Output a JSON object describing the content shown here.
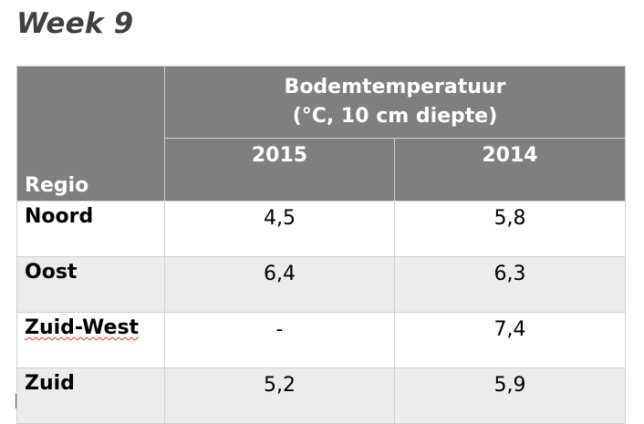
{
  "title": "Week 9",
  "table": {
    "region_header": "Regio",
    "measure_header_line1": "Bodemtemperatuur",
    "measure_header_line2": "(°C, 10 cm diepte)",
    "years": [
      "2015",
      "2014"
    ],
    "rows": [
      {
        "region": "Noord",
        "v2015": "4,5",
        "v2014": "5,8"
      },
      {
        "region": "Oost",
        "v2015": "6,4",
        "v2014": "6,3"
      },
      {
        "region": "Zuid-West",
        "v2015": "-",
        "v2014": "7,4"
      },
      {
        "region": "Zuid",
        "v2015": "5,2",
        "v2014": "5,9"
      }
    ]
  },
  "colors": {
    "header_bg": "#7f7f7f",
    "shaded_row_bg": "#ececec",
    "title_color": "#404040",
    "spellcheck_underline": "#e0302a"
  }
}
